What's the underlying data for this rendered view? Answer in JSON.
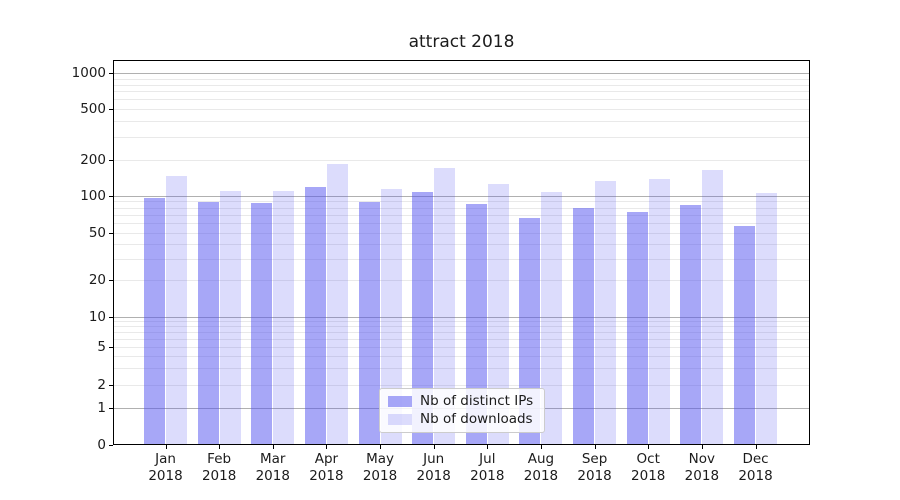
{
  "title": "attract 2018",
  "legend": {
    "items": [
      {
        "label": "Nb of distinct IPs",
        "color": "rgba(80,80,240,0.5)"
      },
      {
        "label": "Nb of downloads",
        "color": "rgba(80,80,240,0.2)"
      }
    ]
  },
  "chart_data": {
    "type": "bar",
    "title": "attract 2018",
    "categories": [
      "Jan 2018",
      "Feb 2018",
      "Mar 2018",
      "Apr 2018",
      "May 2018",
      "Jun 2018",
      "Jul 2018",
      "Aug 2018",
      "Sep 2018",
      "Oct 2018",
      "Nov 2018",
      "Dec 2018"
    ],
    "series": [
      {
        "name": "Nb of distinct IPs",
        "color": "rgba(80,80,240,0.5)",
        "values": [
          95,
          88,
          87,
          117,
          88,
          108,
          86,
          66,
          80,
          74,
          84,
          57
        ]
      },
      {
        "name": "Nb of downloads",
        "color": "rgba(80,80,240,0.2)",
        "values": [
          147,
          110,
          110,
          185,
          113,
          170,
          124,
          108,
          133,
          137,
          165,
          104
        ]
      }
    ],
    "xlabel": "",
    "ylabel": "",
    "yscale": "symlog",
    "yticks": [
      0,
      1,
      2,
      5,
      10,
      20,
      50,
      100,
      200,
      500,
      1000
    ],
    "major_gridline_values": [
      1,
      10,
      100,
      1000
    ],
    "ylim": [
      0,
      1300
    ],
    "grid": true,
    "legend_position": "lower center"
  },
  "colors": {
    "major_grid": "#b0b0b0",
    "minor_grid": "#e9e9e9",
    "spine": "#000000",
    "text": "#1c1c1c"
  }
}
